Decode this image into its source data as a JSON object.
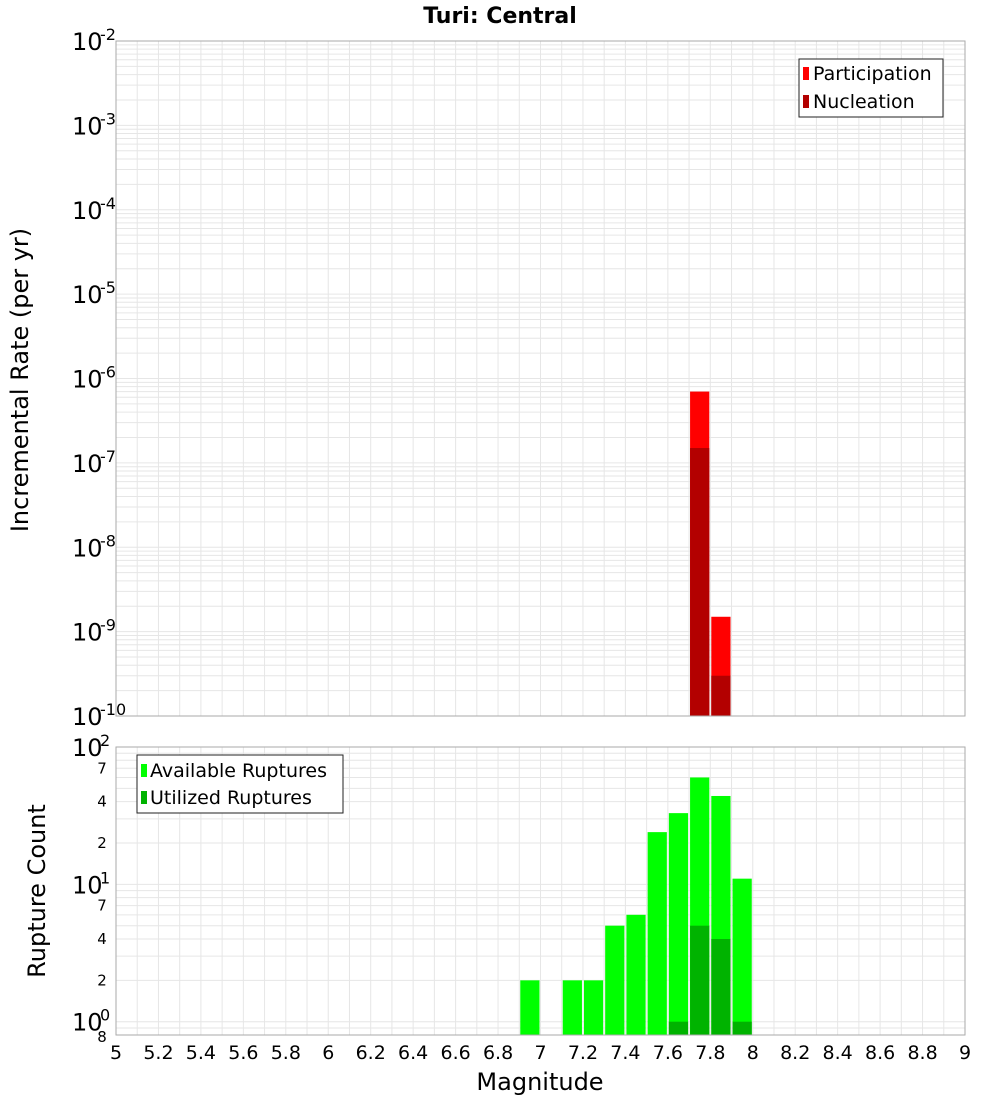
{
  "title": "Turi: Central",
  "xlabel": "Magnitude",
  "colors": {
    "participation": "#ff0000",
    "nucleation": "#b30000",
    "available": "#00ff00",
    "utilized": "#00b300",
    "grid": "#e6e6e6",
    "frame": "#aaaaaa"
  },
  "chart_data": [
    {
      "type": "bar",
      "ylabel": "Incremental Rate (per yr)",
      "yscale": "log",
      "ylim": [
        1e-10,
        0.01
      ],
      "xlim": [
        5,
        9
      ],
      "bar_width": 0.1,
      "legend_position": "top-right",
      "grid": true,
      "series": [
        {
          "name": "Participation",
          "x": [
            7.75,
            7.85
          ],
          "values": [
            7e-07,
            1.5e-09
          ]
        },
        {
          "name": "Nucleation",
          "x": [
            7.75,
            7.85
          ],
          "values": [
            1.5e-07,
            3e-10
          ]
        }
      ]
    },
    {
      "type": "bar",
      "ylabel": "Rupture Count",
      "yscale": "log",
      "ylim": [
        0.8,
        100
      ],
      "xlim": [
        5,
        9
      ],
      "bar_width": 0.1,
      "legend_position": "top-left",
      "grid": true,
      "series": [
        {
          "name": "Available Ruptures",
          "x": [
            6.95,
            7.15,
            7.25,
            7.35,
            7.45,
            7.55,
            7.65,
            7.75,
            7.85,
            7.95
          ],
          "values": [
            2,
            2,
            2,
            5,
            6,
            24,
            33,
            60,
            44,
            11
          ]
        },
        {
          "name": "Utilized Ruptures",
          "x": [
            7.65,
            7.75,
            7.85,
            7.95
          ],
          "values": [
            1,
            5,
            4,
            1
          ]
        }
      ]
    }
  ],
  "x_ticks": [
    "5",
    "5.2",
    "5.4",
    "5.6",
    "5.8",
    "6",
    "6.2",
    "6.4",
    "6.6",
    "6.8",
    "7",
    "7.2",
    "7.4",
    "7.6",
    "7.8",
    "8",
    "8.2",
    "8.4",
    "8.6",
    "8.8",
    "9"
  ],
  "top_y_ticks": [
    {
      "base": "10",
      "exp": "-2"
    },
    {
      "base": "10",
      "exp": "-3"
    },
    {
      "base": "10",
      "exp": "-4"
    },
    {
      "base": "10",
      "exp": "-5"
    },
    {
      "base": "10",
      "exp": "-6"
    },
    {
      "base": "10",
      "exp": "-7"
    },
    {
      "base": "10",
      "exp": "-8"
    },
    {
      "base": "10",
      "exp": "-9"
    },
    {
      "base": "10",
      "exp": "-10"
    }
  ],
  "bottom_y_ticks": [
    {
      "base": "10",
      "exp": "2"
    },
    {
      "base": "10",
      "exp": "1"
    },
    {
      "base": "10",
      "exp": "0"
    }
  ],
  "bottom_minor_ticks": [
    "7",
    "4",
    "2",
    "7",
    "4",
    "2",
    "8"
  ]
}
